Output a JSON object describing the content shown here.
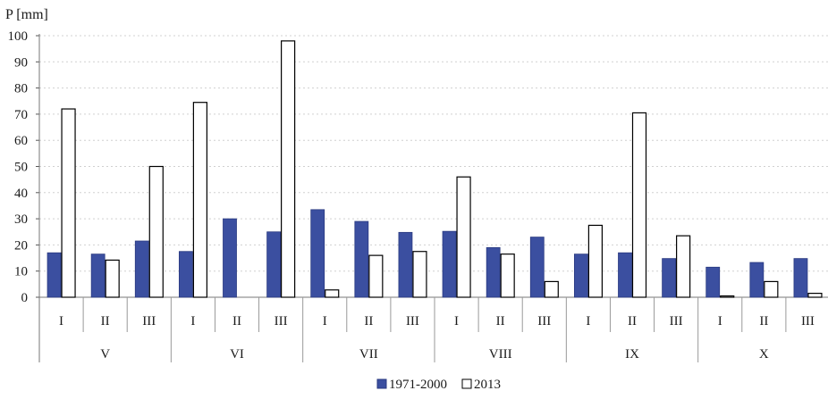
{
  "chart_data": {
    "type": "bar",
    "ylabel": "P [mm]",
    "ylim": [
      0,
      100
    ],
    "yticks": [
      0,
      10,
      20,
      30,
      40,
      50,
      60,
      70,
      80,
      90,
      100
    ],
    "grid": "horizontal dotted",
    "legend_position": "bottom-center",
    "groups": [
      "V",
      "VI",
      "VII",
      "VIII",
      "IX",
      "X"
    ],
    "categories": [
      "I",
      "II",
      "III",
      "I",
      "II",
      "III",
      "I",
      "II",
      "III",
      "I",
      "II",
      "III",
      "I",
      "II",
      "III",
      "I",
      "II",
      "III"
    ],
    "series": [
      {
        "name": "1971-2000",
        "color": "#3b4fa0",
        "values": [
          17,
          16.5,
          21.5,
          17.5,
          30,
          25,
          33.5,
          29,
          24.8,
          25.2,
          19,
          23,
          16.5,
          17,
          14.8,
          11.5,
          13.3,
          14.8
        ]
      },
      {
        "name": "2013",
        "color": "#ffffff",
        "values": [
          72,
          14.2,
          50,
          74.5,
          0,
          98,
          2.8,
          16,
          17.5,
          46,
          16.5,
          6,
          27.5,
          70.5,
          23.5,
          0.5,
          6,
          1.5
        ]
      }
    ]
  }
}
